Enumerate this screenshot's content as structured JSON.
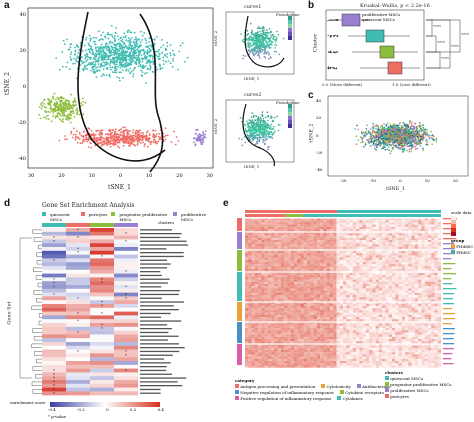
{
  "figure": {
    "panel_labels": [
      "a",
      "b",
      "c",
      "d",
      "e"
    ]
  },
  "panel_a": {
    "main_plot": {
      "xlabel": "tSNE_1",
      "ylabel": "tSNE_2",
      "xticks": [
        "30",
        "20",
        "10",
        "0",
        "10",
        "20",
        "30"
      ],
      "yticks": [
        "40",
        "20",
        "0",
        "-20",
        "-40"
      ],
      "cluster_colors": {
        "teal": "#3fbcb3",
        "green": "#8dbd3c",
        "salmon": "#ee6e66",
        "purple": "#9b7fcf"
      }
    },
    "inset_top": {
      "title": "curve1",
      "legend_title": "Pseudotime",
      "ylabel": "tSNE_2",
      "xlabel": "tSNE_1"
    },
    "inset_bottom": {
      "title": "curve2",
      "legend_title": "Pseudotime",
      "ylabel": "tSNE_2",
      "xlabel": "tSNE_1"
    }
  },
  "panel_b": {
    "stat_text": "Kruskal–Wallis, p < 2.2e-16",
    "legend_items": [
      "proliferative MSCs",
      "quiescent MSCs"
    ],
    "ylabel": "Cluster",
    "xlabel_left": "0.0 (More different)",
    "xlabel_right": "1.0 (Less different)",
    "significance": [
      "****",
      "****",
      "****",
      "****",
      "****"
    ],
    "box_colors": [
      "#9b7fcf",
      "#3fbcb3",
      "#8dbd3c",
      "#ee6e66"
    ]
  },
  "panel_c": {
    "xlabel": "tSNE_1",
    "ylabel": "tSNE_2",
    "yticks": [
      "40",
      "20",
      "0",
      "-20",
      "-40"
    ],
    "xticks": [
      "-20",
      "-10",
      "0",
      "10",
      "20"
    ]
  },
  "panel_d": {
    "title": "Gene Set Enrichment Analysis",
    "ylabel": "Gene Set",
    "legend_title": "clusters",
    "legend_items": [
      "quiescent MSCs",
      "pericytes",
      "progenitor proliferative MSCs",
      "proliferative MSCs"
    ],
    "legend_colors": [
      "#3fbcb3",
      "#ee6e66",
      "#8dbd3c",
      "#9b7fcf"
    ],
    "scale_label": "enrichment score",
    "scale_ticks": [
      "-0.4",
      "-0.2",
      "0",
      "0.2",
      "0.4"
    ],
    "pvalue_note": "* p-value"
  },
  "panel_e": {
    "legend_col1_title": "category",
    "category_items": [
      "Antigen processing and presentation",
      "Antibacterials",
      "Cytokine receptors",
      "Cytokines",
      "Cytotoxicity",
      "Negative regulation of inflammatory response",
      "Positive regulation of inflammatory response"
    ],
    "category_colors": [
      "#ee6e66",
      "#9b7fcf",
      "#8dbd3c",
      "#3fbcb3",
      "#e7a23a",
      "#4a90c6",
      "#d65fa8"
    ],
    "legend_col2_title": "clusters",
    "cluster_items": [
      "quiescent MSCs",
      "progenitor proliferative MSCs",
      "proliferative MSCs",
      "pericytes"
    ],
    "right_legend_groups": [
      "group",
      "FHddSC",
      "FHdSC"
    ],
    "scale_title": "scale data"
  }
}
